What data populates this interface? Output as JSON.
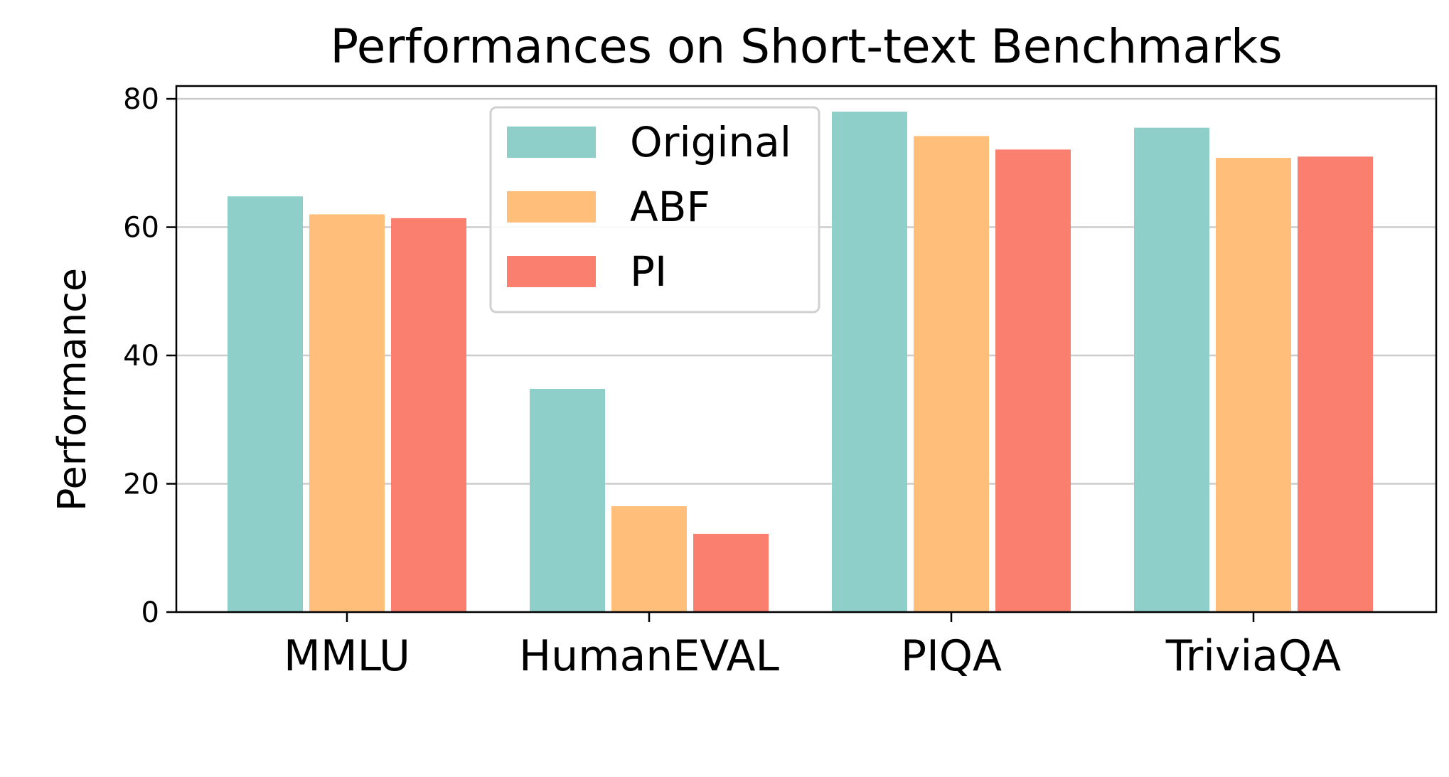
{
  "chart_data": {
    "type": "bar",
    "title": "Performances on Short-text Benchmarks",
    "xlabel": "",
    "ylabel": "Performance",
    "ylim": [
      0,
      82
    ],
    "yticks": [
      0,
      20,
      40,
      60,
      80
    ],
    "grid": true,
    "legend_position": "upper-center",
    "categories": [
      "MMLU",
      "HumanEVAL",
      "PIQA",
      "TriviaQA"
    ],
    "series": [
      {
        "name": "Original",
        "color": "#8ecfc9",
        "values": [
          64.8,
          34.8,
          78.0,
          75.5
        ]
      },
      {
        "name": "ABF",
        "color": "#ffbe7a",
        "values": [
          62.0,
          16.5,
          74.2,
          70.8
        ]
      },
      {
        "name": "PI",
        "color": "#fa7f6f",
        "values": [
          61.4,
          12.2,
          72.1,
          71.0
        ]
      }
    ]
  }
}
